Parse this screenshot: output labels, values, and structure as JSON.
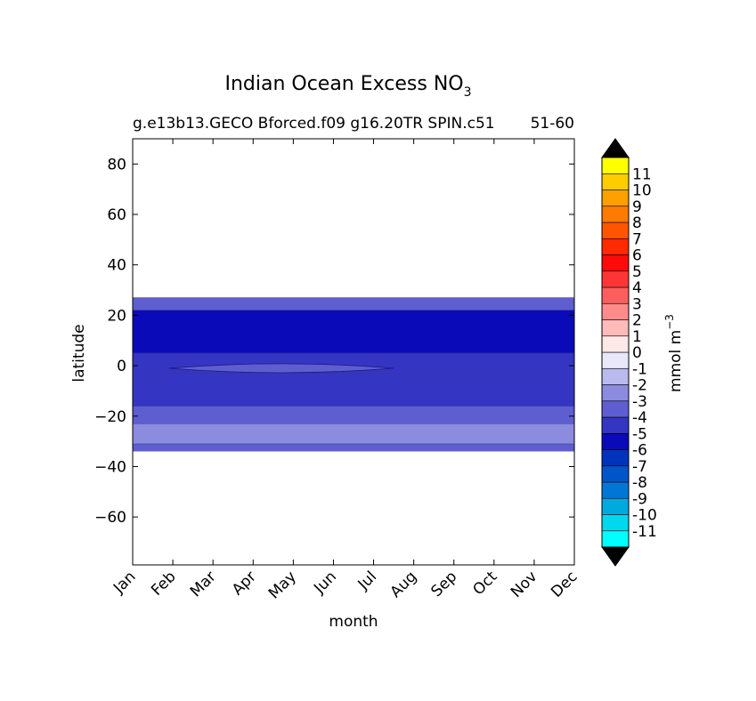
{
  "chart_data": {
    "type": "heatmap",
    "title": "Indian Ocean Excess NO",
    "title_subscript": "3",
    "subtitle_left": "g.e13b13.GECO Bforced.f09 g16.20TR SPIN.c51",
    "subtitle_right": "51-60",
    "xlabel": "month",
    "ylabel": "latitude",
    "x_categories": [
      "Jan",
      "Feb",
      "Mar",
      "Apr",
      "May",
      "Jun",
      "Jul",
      "Aug",
      "Sep",
      "Oct",
      "Nov",
      "Dec"
    ],
    "xlim": [
      "Jan",
      "Dec"
    ],
    "ylim": [
      -79,
      90
    ],
    "y_ticks": [
      80,
      60,
      40,
      20,
      0,
      -20,
      -40,
      -60
    ],
    "data_lat_range": [
      -34,
      27
    ],
    "colorbar": {
      "label": "mmol m",
      "label_superscript": "−3",
      "extend": "both",
      "extend_low_color": "#000000",
      "extend_high_color": "#000000",
      "levels": [
        {
          "label": "-11",
          "color": "#00ffff"
        },
        {
          "label": "-10",
          "color": "#00d8ee"
        },
        {
          "label": "-9",
          "color": "#00aadf"
        },
        {
          "label": "-8",
          "color": "#0077d6"
        },
        {
          "label": "-7",
          "color": "#0055c9"
        },
        {
          "label": "-6",
          "color": "#0033bb"
        },
        {
          "label": "-5",
          "color": "#0a0ab8"
        },
        {
          "label": "-4",
          "color": "#3535c4"
        },
        {
          "label": "-3",
          "color": "#5e5ed0"
        },
        {
          "label": "-2",
          "color": "#8b8bdf"
        },
        {
          "label": "-1",
          "color": "#babaee"
        },
        {
          "label": "0",
          "color": "#e8e8fa"
        },
        {
          "label": "1",
          "color": "#ffe8e8"
        },
        {
          "label": "2",
          "color": "#ffbaba"
        },
        {
          "label": "3",
          "color": "#ff8b8b"
        },
        {
          "label": "4",
          "color": "#ff5e5e"
        },
        {
          "label": "5",
          "color": "#ff3535"
        },
        {
          "label": "6",
          "color": "#ff0a0a"
        },
        {
          "label": "7",
          "color": "#ff2a00"
        },
        {
          "label": "8",
          "color": "#ff5500"
        },
        {
          "label": "9",
          "color": "#ff7a00"
        },
        {
          "label": "10",
          "color": "#ffa000"
        },
        {
          "label": "11",
          "color": "#ffcc00"
        },
        {
          "label": "",
          "color": "#ffff00"
        }
      ]
    },
    "bands": [
      {
        "lat_min": 22,
        "lat_max": 27,
        "value": -3,
        "color": "#5e5ed0"
      },
      {
        "lat_min": 5,
        "lat_max": 22,
        "value": -5,
        "color": "#0a0ab8"
      },
      {
        "lat_min": -3,
        "lat_max": 5,
        "value": -4,
        "color": "#3535c4"
      },
      {
        "lat_min": -16,
        "lat_max": -3,
        "value": -4,
        "color": "#3535c4"
      },
      {
        "lat_min": -23,
        "lat_max": -16,
        "value": -3,
        "color": "#5e5ed0"
      },
      {
        "lat_min": -31,
        "lat_max": -23,
        "value": -2,
        "color": "#8b8bdf"
      },
      {
        "lat_min": -34,
        "lat_max": -31,
        "value": -3,
        "color": "#5e5ed0"
      }
    ],
    "features": [
      {
        "value": -3,
        "color": "#5e5ed0",
        "month_start": 0.9,
        "month_end": 6.5,
        "lat_min": -3.5,
        "lat_max": 1.5
      }
    ],
    "grid": false,
    "legend": "colorbar-right"
  }
}
